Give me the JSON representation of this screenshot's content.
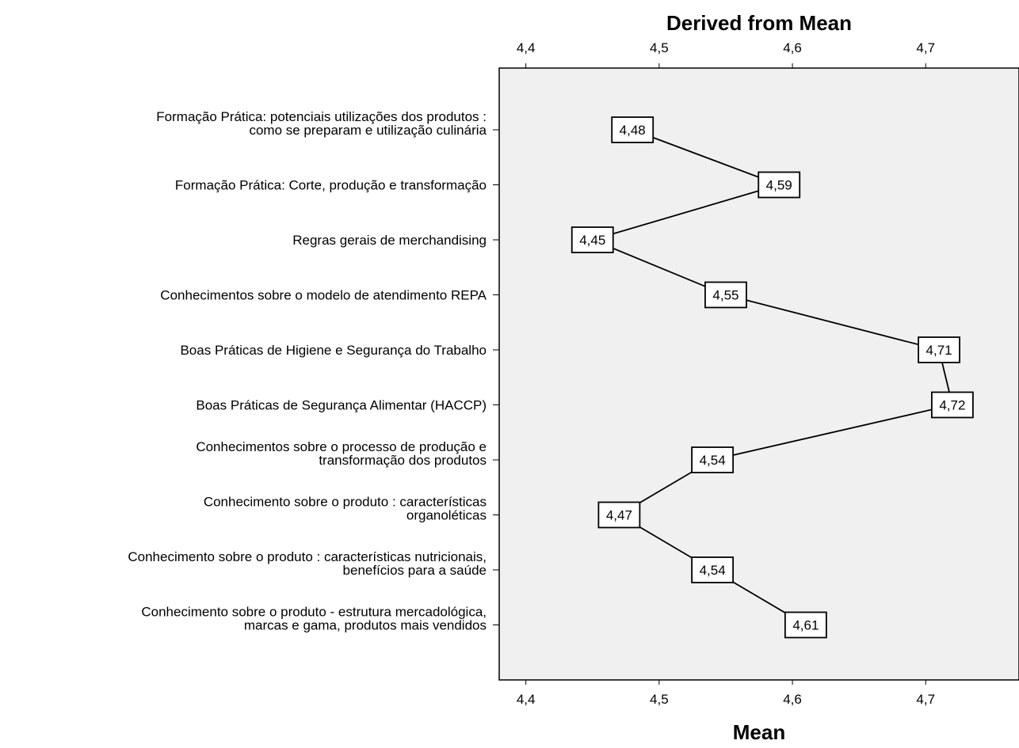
{
  "chart_data": {
    "type": "line",
    "orientation": "horizontal",
    "title": "Derived from Mean",
    "xlabel": "Mean",
    "ylabel": "",
    "xlim": [
      4.38,
      4.77
    ],
    "xticks": [
      4.4,
      4.5,
      4.6,
      4.7
    ],
    "tick_labels": [
      "4,4",
      "4,5",
      "4,6",
      "4,7"
    ],
    "grid": false,
    "legend": "none",
    "colors": {
      "plot_background": "#f0f0f0",
      "line": "#000000",
      "label_box": "#ffffff"
    },
    "categories": [
      [
        "Formação Prática: potenciais utilizações dos produtos :",
        "como se preparam e utilização culinária"
      ],
      [
        "Formação Prática: Corte, produção e transformação"
      ],
      [
        "Regras gerais de merchandising"
      ],
      [
        "Conhecimentos sobre o modelo de atendimento REPA"
      ],
      [
        "Boas Práticas de Higiene e Segurança do Trabalho"
      ],
      [
        "Boas Práticas de Segurança Alimentar (HACCP)"
      ],
      [
        "Conhecimentos sobre o processo de produção e",
        "transformação dos produtos"
      ],
      [
        "Conhecimento sobre o produto : características",
        "organoléticas"
      ],
      [
        "Conhecimento sobre o produto : características nutricionais,",
        "benefícios para a saúde"
      ],
      [
        "Conhecimento sobre o produto - estrutura mercadológica,",
        "marcas e gama, produtos mais vendidos"
      ]
    ],
    "values": [
      4.48,
      4.59,
      4.45,
      4.55,
      4.71,
      4.72,
      4.54,
      4.47,
      4.54,
      4.61
    ],
    "value_labels": [
      "4,48",
      "4,59",
      "4,45",
      "4,55",
      "4,71",
      "4,72",
      "4,54",
      "4,47",
      "4,54",
      "4,61"
    ]
  }
}
